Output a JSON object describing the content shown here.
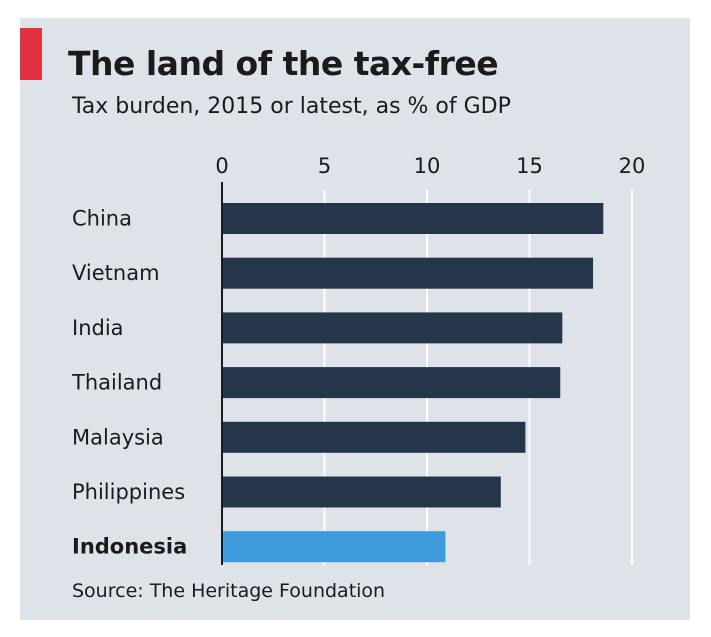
{
  "chart_data": {
    "type": "bar",
    "orientation": "horizontal",
    "title": "The land of the tax-free",
    "subtitle": "Tax burden, 2015 or latest, as % of GDP",
    "categories": [
      "China",
      "Vietnam",
      "India",
      "Thailand",
      "Malaysia",
      "Philippines",
      "Indonesia"
    ],
    "values": [
      18.6,
      18.1,
      16.6,
      16.5,
      14.8,
      13.6,
      10.9
    ],
    "highlight_category": "Indonesia",
    "xlim": [
      0,
      20
    ],
    "xticks": [
      0,
      5,
      10,
      15,
      20
    ],
    "tick_position": "top",
    "grid": true,
    "source": "Source: The Heritage Foundation"
  },
  "colors": {
    "accent": "#e3323f",
    "bar": "#25364a",
    "highlight": "#3f9bdb",
    "grid": "#ffffff",
    "axis": "#1b1b1b"
  }
}
